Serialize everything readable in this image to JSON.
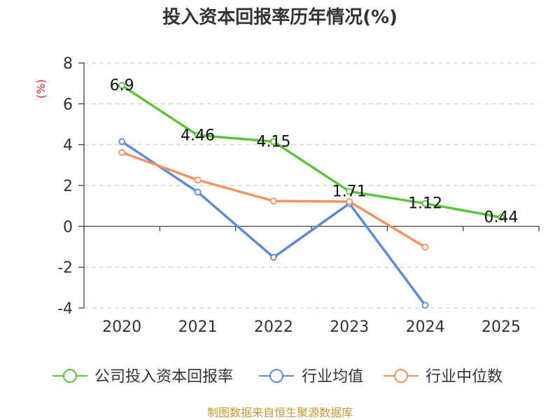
{
  "chart_data": {
    "type": "line",
    "title": "投入资本回报率历年情况(%)",
    "y_unit_label": "(%)",
    "categories": [
      "2020",
      "2021",
      "2022",
      "2023",
      "2024",
      "2025"
    ],
    "ylim": [
      -4,
      8
    ],
    "yticks": [
      8,
      6,
      4,
      2,
      0,
      -2,
      -4
    ],
    "ytick_labels": [
      "8",
      "6",
      "4",
      "2",
      "0",
      "-2",
      "-4"
    ],
    "grid": true,
    "legend_position": "bottom",
    "series": [
      {
        "name": "公司投入资本回报率",
        "color": "#5ac43a",
        "values": [
          6.9,
          4.46,
          4.15,
          1.71,
          1.12,
          0.44
        ],
        "labels": [
          "6.9",
          "4.46",
          "4.15",
          "1.71",
          "1.12",
          "0.44"
        ]
      },
      {
        "name": "行业均值",
        "color": "#5b8bd9",
        "values": [
          4.15,
          1.68,
          -1.52,
          1.12,
          -3.87,
          null
        ]
      },
      {
        "name": "行业中位数",
        "color": "#f4935f",
        "values": [
          3.62,
          2.27,
          1.24,
          1.21,
          -1.02,
          null
        ]
      }
    ],
    "source": "制图数据来自恒生聚源数据库"
  }
}
